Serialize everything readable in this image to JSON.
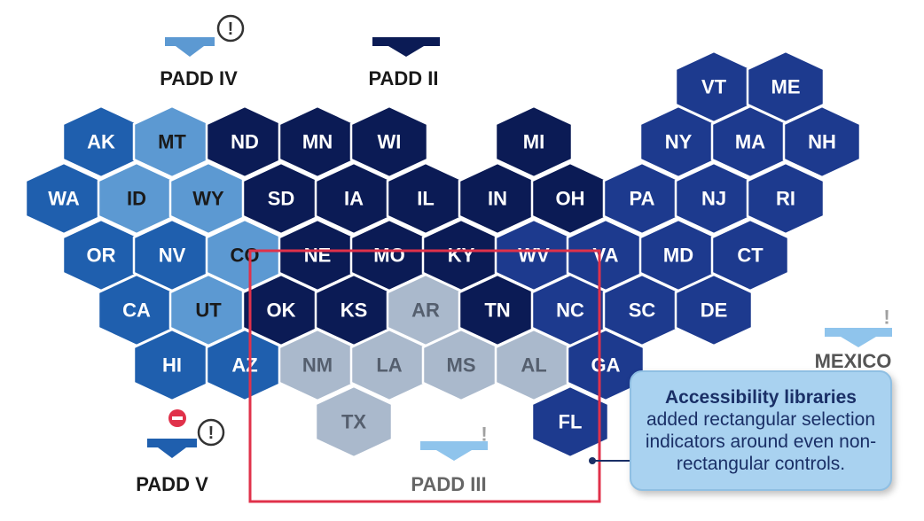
{
  "colors": {
    "padd_i": "#1d3a8e",
    "padd_ii": "#0b1b55",
    "padd_iii": "#aab9cc",
    "padd_iv": "#5c99d2",
    "padd_v": "#1f5fae",
    "label_light": "#ffffff",
    "label_dark": "#1a1a1a",
    "focus_rect": "#e0314a",
    "callout_bg": "#a9d2f0",
    "callout_text": "#1a2f66",
    "arrow_light": "#8fc4ec"
  },
  "states": [
    {
      "code": "VT",
      "padd": "padd_i"
    },
    {
      "code": "ME",
      "padd": "padd_i"
    },
    {
      "code": "AK",
      "padd": "padd_v"
    },
    {
      "code": "MT",
      "padd": "padd_iv"
    },
    {
      "code": "ND",
      "padd": "padd_ii"
    },
    {
      "code": "MN",
      "padd": "padd_ii"
    },
    {
      "code": "WI",
      "padd": "padd_ii"
    },
    {
      "code": "MI",
      "padd": "padd_ii"
    },
    {
      "code": "NY",
      "padd": "padd_i"
    },
    {
      "code": "MA",
      "padd": "padd_i"
    },
    {
      "code": "NH",
      "padd": "padd_i"
    },
    {
      "code": "WA",
      "padd": "padd_v"
    },
    {
      "code": "ID",
      "padd": "padd_iv"
    },
    {
      "code": "WY",
      "padd": "padd_iv"
    },
    {
      "code": "SD",
      "padd": "padd_ii"
    },
    {
      "code": "IA",
      "padd": "padd_ii"
    },
    {
      "code": "IL",
      "padd": "padd_ii"
    },
    {
      "code": "IN",
      "padd": "padd_ii"
    },
    {
      "code": "OH",
      "padd": "padd_ii"
    },
    {
      "code": "PA",
      "padd": "padd_i"
    },
    {
      "code": "NJ",
      "padd": "padd_i"
    },
    {
      "code": "RI",
      "padd": "padd_i"
    },
    {
      "code": "OR",
      "padd": "padd_v"
    },
    {
      "code": "NV",
      "padd": "padd_v"
    },
    {
      "code": "CO",
      "padd": "padd_iv"
    },
    {
      "code": "NE",
      "padd": "padd_ii"
    },
    {
      "code": "MO",
      "padd": "padd_ii"
    },
    {
      "code": "KY",
      "padd": "padd_ii"
    },
    {
      "code": "WV",
      "padd": "padd_i"
    },
    {
      "code": "VA",
      "padd": "padd_i"
    },
    {
      "code": "MD",
      "padd": "padd_i"
    },
    {
      "code": "CT",
      "padd": "padd_i"
    },
    {
      "code": "CA",
      "padd": "padd_v"
    },
    {
      "code": "UT",
      "padd": "padd_iv"
    },
    {
      "code": "OK",
      "padd": "padd_ii"
    },
    {
      "code": "KS",
      "padd": "padd_ii"
    },
    {
      "code": "AR",
      "padd": "padd_iii"
    },
    {
      "code": "TN",
      "padd": "padd_ii"
    },
    {
      "code": "NC",
      "padd": "padd_i"
    },
    {
      "code": "SC",
      "padd": "padd_i"
    },
    {
      "code": "DE",
      "padd": "padd_i"
    },
    {
      "code": "HI",
      "padd": "padd_v"
    },
    {
      "code": "AZ",
      "padd": "padd_v"
    },
    {
      "code": "NM",
      "padd": "padd_iii"
    },
    {
      "code": "LA",
      "padd": "padd_iii"
    },
    {
      "code": "MS",
      "padd": "padd_iii"
    },
    {
      "code": "AL",
      "padd": "padd_iii"
    },
    {
      "code": "GA",
      "padd": "padd_i"
    },
    {
      "code": "TX",
      "padd": "padd_iii"
    },
    {
      "code": "FL",
      "padd": "padd_i"
    }
  ],
  "regions": {
    "padd_iv": "PADD IV",
    "padd_ii": "PADD II",
    "padd_v": "PADD V",
    "padd_iii": "PADD III",
    "mexico": "MEXICO"
  },
  "callout": {
    "title": "Accessibility libraries",
    "body": "added rectangular selection indicators around even non-rectangular controls."
  },
  "icons": {
    "warning": "exclamation-circle-icon",
    "error": "red-minus-badge-icon",
    "arrow": "down-arrow-icon"
  }
}
